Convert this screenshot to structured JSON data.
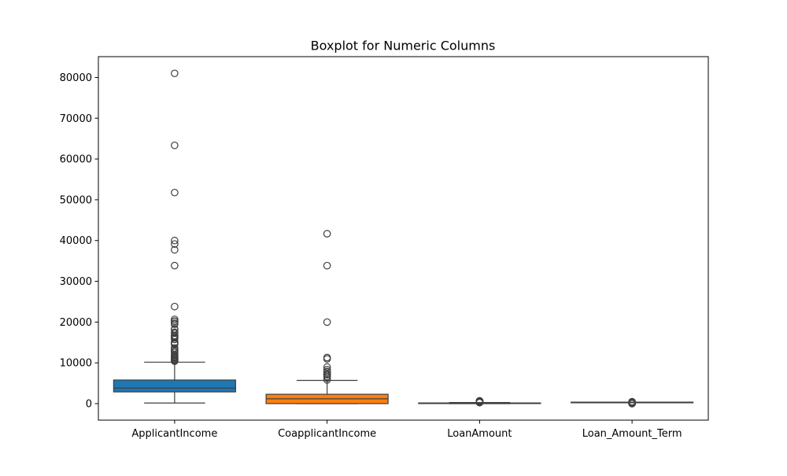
{
  "chart_data": {
    "type": "box",
    "title": "Boxplot for Numeric Columns",
    "xlabel": "",
    "ylabel": "",
    "ylim": [
      -4050,
      85100
    ],
    "yticks": [
      0,
      10000,
      20000,
      30000,
      40000,
      50000,
      60000,
      70000,
      80000
    ],
    "grid": false,
    "categories": [
      "ApplicantIncome",
      "CoapplicantIncome",
      "LoanAmount",
      "Loan_Amount_Term"
    ],
    "boxes": [
      {
        "category": "ApplicantIncome",
        "color": "#1f77b4",
        "whisker_low": 150,
        "q1": 2877,
        "median": 3812,
        "q3": 5795,
        "whisker_high": 10171,
        "outliers": [
          10408,
          10500,
          10750,
          10833,
          11000,
          11250,
          11417,
          11500,
          11757,
          12000,
          12500,
          12841,
          12876,
          13262,
          13650,
          14583,
          14683,
          14880,
          14999,
          15000,
          15759,
          16120,
          16250,
          16525,
          16667,
          16692,
          17263,
          17500,
          18165,
          18333,
          19484,
          19730,
          20166,
          20233,
          20667,
          23803,
          33846,
          37719,
          39147,
          39999,
          51763,
          63337,
          81000
        ]
      },
      {
        "category": "CoapplicantIncome",
        "color": "#ff7f0e",
        "whisker_low": 0,
        "q1": 0,
        "median": 1188,
        "q3": 2297,
        "whisker_high": 5701,
        "outliers": [
          5821,
          6250,
          6666,
          7101,
          7166,
          7210,
          7250,
          7750,
          7873,
          8333,
          8980,
          10968,
          11300,
          20000,
          33837,
          41667
        ]
      },
      {
        "category": "LoanAmount",
        "color": "#2ca02c",
        "whisker_low": 9,
        "q1": 100,
        "median": 128,
        "q3": 168,
        "whisker_high": 270,
        "outliers": [
          275,
          280,
          286,
          300,
          311,
          349,
          360,
          370,
          380,
          400,
          405,
          436,
          480,
          495,
          496,
          500,
          570,
          600,
          650,
          700
        ]
      },
      {
        "category": "Loan_Amount_Term",
        "color": "#d62728",
        "whisker_low": 360,
        "q1": 360,
        "median": 360,
        "q3": 360,
        "whisker_high": 360,
        "outliers": [
          12,
          36,
          60,
          84,
          120,
          180,
          240,
          300,
          480
        ]
      }
    ]
  }
}
